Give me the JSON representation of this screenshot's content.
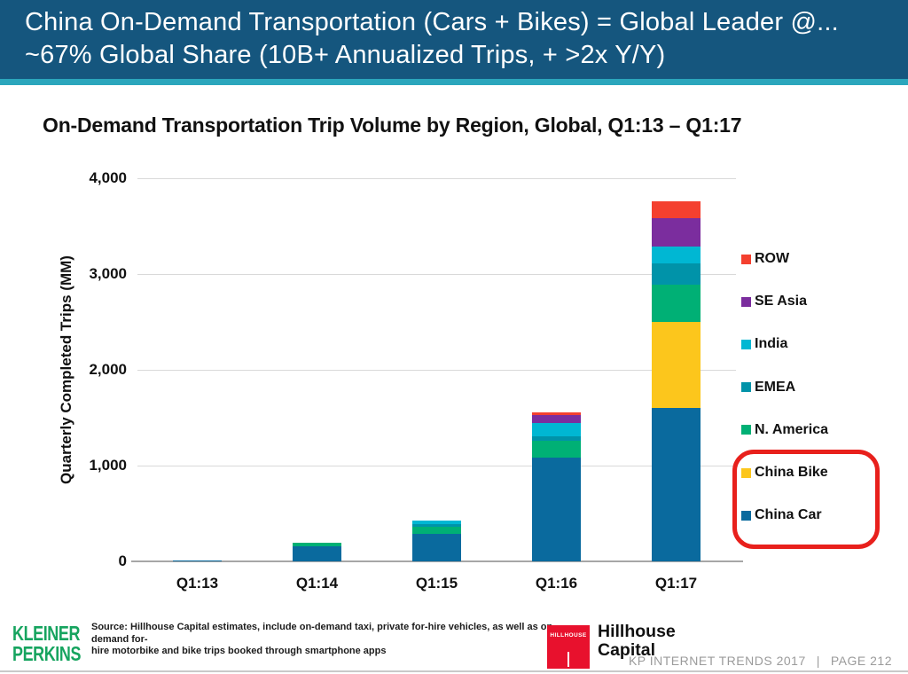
{
  "header": {
    "title_line1": "China On-Demand Transportation (Cars + Bikes) = Global Leader @...",
    "title_line2": "~67% Global Share (10B+ Annualized Trips, + >2x Y/Y)",
    "bg_color": "#15567E",
    "accent_stripe_color": "#2BA6BC"
  },
  "chart_data": {
    "type": "bar",
    "stacked": true,
    "title": "On-Demand Transportation Trip Volume by Region, Global, Q1:13 – Q1:17",
    "ylabel": "Quarterly Completed Trips (MM)",
    "ylim": [
      0,
      4000
    ],
    "yticks": [
      0,
      1000,
      2000,
      3000,
      4000
    ],
    "ytick_labels": [
      "0",
      "1,000",
      "2,000",
      "3,000",
      "4,000"
    ],
    "grid": true,
    "categories": [
      "Q1:13",
      "Q1:14",
      "Q1:15",
      "Q1:16",
      "Q1:17"
    ],
    "series": [
      {
        "name": "China Car",
        "color": "#0A6A9E",
        "values": [
          10,
          160,
          285,
          1080,
          1600
        ]
      },
      {
        "name": "China Bike",
        "color": "#FCC61C",
        "values": [
          0,
          0,
          0,
          0,
          900
        ]
      },
      {
        "name": "N. America",
        "color": "#00B075",
        "values": [
          0,
          30,
          75,
          175,
          390
        ]
      },
      {
        "name": "EMEA",
        "color": "#0093A9",
        "values": [
          0,
          0,
          30,
          55,
          220
        ]
      },
      {
        "name": "India",
        "color": "#00B7D3",
        "values": [
          0,
          0,
          35,
          130,
          175
        ]
      },
      {
        "name": "SE Asia",
        "color": "#7B2D9E",
        "values": [
          0,
          0,
          0,
          90,
          295
        ]
      },
      {
        "name": "ROW",
        "color": "#F4402F",
        "values": [
          0,
          0,
          0,
          30,
          180
        ]
      }
    ],
    "legend_position": "right",
    "legend_order_top_to_bottom": [
      "ROW",
      "SE Asia",
      "India",
      "EMEA",
      "N. America",
      "China Bike",
      "China Car"
    ],
    "legend_highlight": {
      "entries": [
        "China Bike",
        "China Car"
      ],
      "color": "#E8201C"
    }
  },
  "footer": {
    "logo_line1": "KLEINER",
    "logo_line2": "PERKINS",
    "logo_color": "#16A45F",
    "source_line1": "Source: Hillhouse Capital estimates, include on-demand taxi, private for-hire vehicles, as well as on-demand for-",
    "source_line2": "hire motorbike and bike trips booked through smartphone apps",
    "hillhouse_square_label": "HILLHOUSE",
    "hillhouse_name_line1": "Hillhouse",
    "hillhouse_name_line2": "Capital",
    "hillhouse_red": "#E8112D",
    "deck_title": "KP INTERNET TRENDS 2017",
    "separator": "|",
    "page_label": "PAGE 212"
  }
}
